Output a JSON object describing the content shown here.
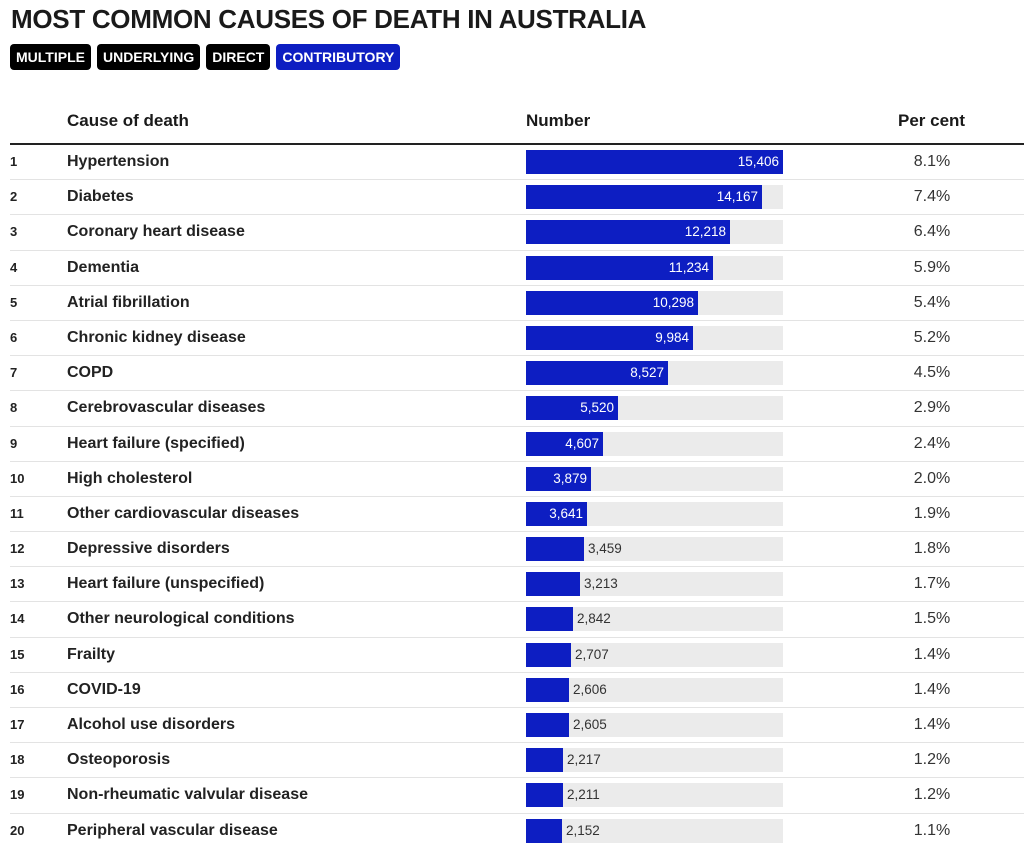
{
  "title": "MOST COMMON CAUSES OF DEATH IN AUSTRALIA",
  "tabs": [
    {
      "label": "MULTIPLE",
      "active": false
    },
    {
      "label": "UNDERLYING",
      "active": false
    },
    {
      "label": "DIRECT",
      "active": false
    },
    {
      "label": "CONTRIBUTORY",
      "active": true
    }
  ],
  "headers": {
    "cause": "Cause of death",
    "number": "Number",
    "percent": "Per cent"
  },
  "colors": {
    "bar": "#0d1ec2",
    "track": "#ebebeb",
    "active_tab": "#0d1ec2",
    "tab": "#000000"
  },
  "chart_data": {
    "type": "bar",
    "title": "MOST COMMON CAUSES OF DEATH IN AUSTRALIA",
    "max": 15406,
    "rows": [
      {
        "rank": "1",
        "cause": "Hypertension",
        "value": 15406,
        "value_label": "15,406",
        "percent": "8.1%"
      },
      {
        "rank": "2",
        "cause": "Diabetes",
        "value": 14167,
        "value_label": "14,167",
        "percent": "7.4%"
      },
      {
        "rank": "3",
        "cause": "Coronary heart disease",
        "value": 12218,
        "value_label": "12,218",
        "percent": "6.4%"
      },
      {
        "rank": "4",
        "cause": "Dementia",
        "value": 11234,
        "value_label": "11,234",
        "percent": "5.9%"
      },
      {
        "rank": "5",
        "cause": "Atrial fibrillation",
        "value": 10298,
        "value_label": "10,298",
        "percent": "5.4%"
      },
      {
        "rank": "6",
        "cause": "Chronic kidney disease",
        "value": 9984,
        "value_label": "9,984",
        "percent": "5.2%"
      },
      {
        "rank": "7",
        "cause": "COPD",
        "value": 8527,
        "value_label": "8,527",
        "percent": "4.5%"
      },
      {
        "rank": "8",
        "cause": "Cerebrovascular diseases",
        "value": 5520,
        "value_label": "5,520",
        "percent": "2.9%"
      },
      {
        "rank": "9",
        "cause": "Heart failure (specified)",
        "value": 4607,
        "value_label": "4,607",
        "percent": "2.4%"
      },
      {
        "rank": "10",
        "cause": "High cholesterol",
        "value": 3879,
        "value_label": "3,879",
        "percent": "2.0%"
      },
      {
        "rank": "11",
        "cause": "Other cardiovascular diseases",
        "value": 3641,
        "value_label": "3,641",
        "percent": "1.9%"
      },
      {
        "rank": "12",
        "cause": "Depressive disorders",
        "value": 3459,
        "value_label": "3,459",
        "percent": "1.8%"
      },
      {
        "rank": "13",
        "cause": "Heart failure (unspecified)",
        "value": 3213,
        "value_label": "3,213",
        "percent": "1.7%"
      },
      {
        "rank": "14",
        "cause": "Other neurological conditions",
        "value": 2842,
        "value_label": "2,842",
        "percent": "1.5%"
      },
      {
        "rank": "15",
        "cause": "Frailty",
        "value": 2707,
        "value_label": "2,707",
        "percent": "1.4%"
      },
      {
        "rank": "16",
        "cause": "COVID-19",
        "value": 2606,
        "value_label": "2,606",
        "percent": "1.4%"
      },
      {
        "rank": "17",
        "cause": "Alcohol use disorders",
        "value": 2605,
        "value_label": "2,605",
        "percent": "1.4%"
      },
      {
        "rank": "18",
        "cause": "Osteoporosis",
        "value": 2217,
        "value_label": "2,217",
        "percent": "1.2%"
      },
      {
        "rank": "19",
        "cause": "Non-rheumatic valvular disease",
        "value": 2211,
        "value_label": "2,211",
        "percent": "1.2%"
      },
      {
        "rank": "20",
        "cause": "Peripheral vascular disease",
        "value": 2152,
        "value_label": "2,152",
        "percent": "1.1%"
      }
    ]
  }
}
